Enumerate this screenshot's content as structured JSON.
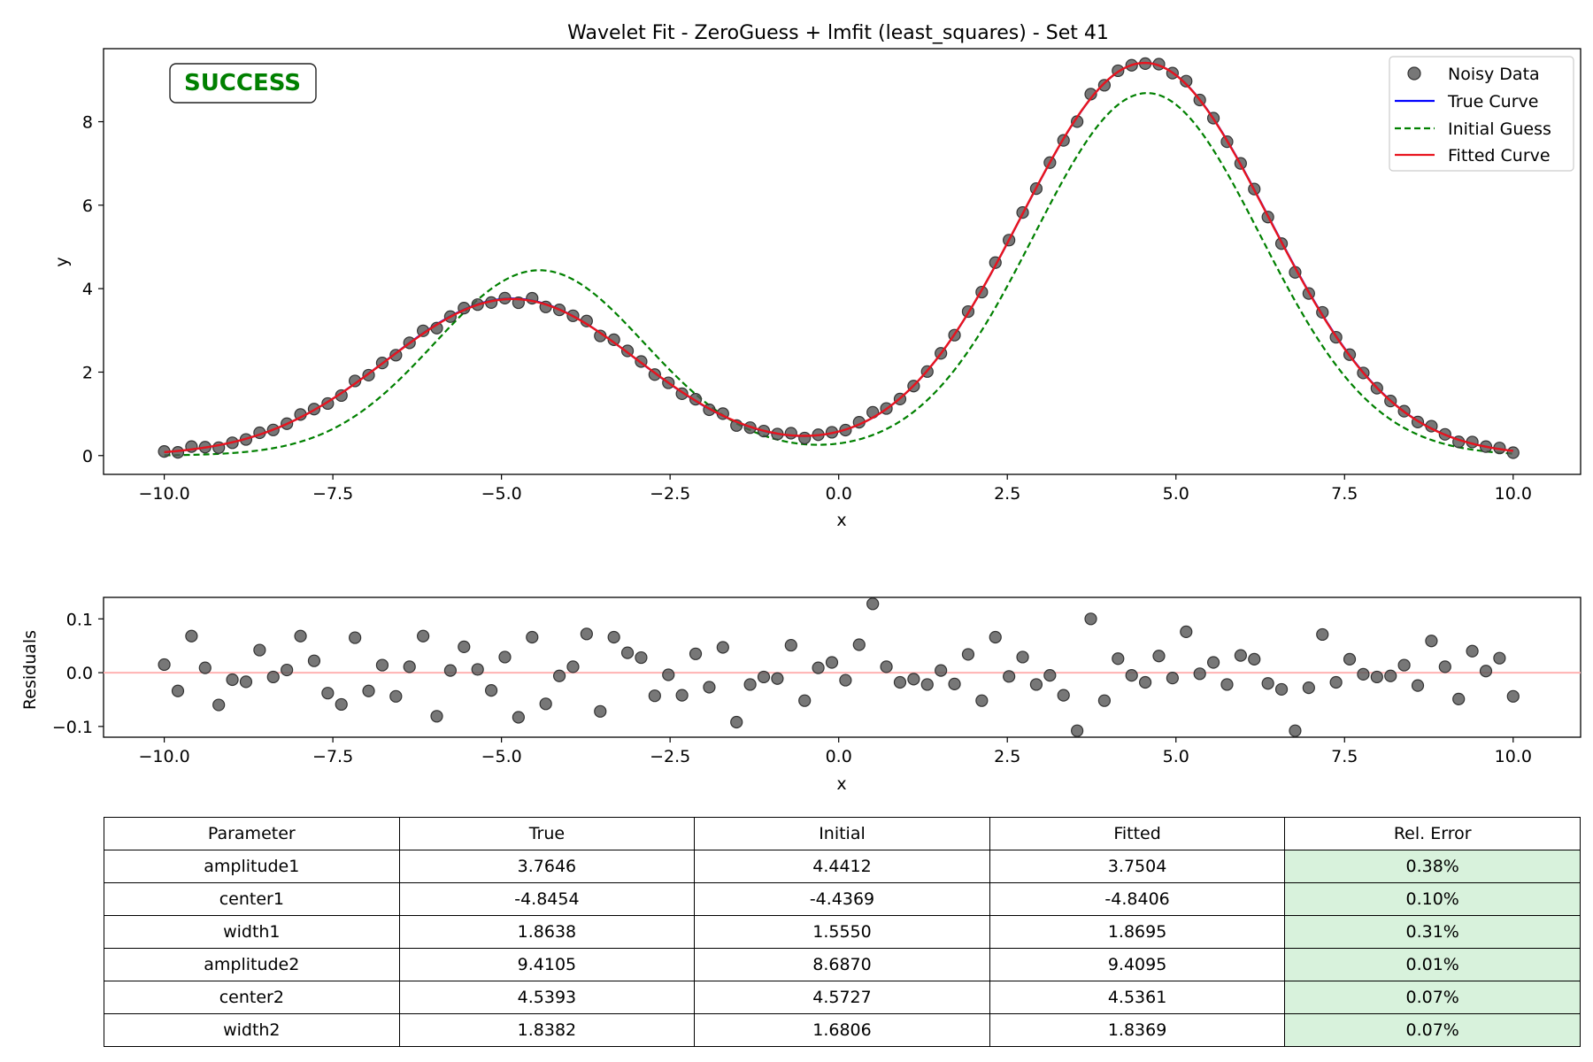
{
  "chart_data": [
    {
      "type": "line",
      "title": "Wavelet Fit - ZeroGuess + lmfit (least_squares) - Set 41",
      "xlabel": "x",
      "ylabel": "y",
      "xlim": [
        -10.9,
        11.0
      ],
      "ylim": [
        -0.45,
        9.75
      ],
      "xticks": [
        -10.0,
        -7.5,
        -5.0,
        -2.5,
        0.0,
        2.5,
        5.0,
        7.5,
        10.0
      ],
      "xtick_labels": [
        "−10.0",
        "−7.5",
        "−5.0",
        "−2.5",
        "0.0",
        "2.5",
        "5.0",
        "7.5",
        "10.0"
      ],
      "yticks": [
        0,
        2,
        4,
        6,
        8
      ],
      "ytick_labels": [
        "0",
        "2",
        "4",
        "6",
        "8"
      ],
      "grid": false,
      "legend_position": "top-right",
      "status_badge": "SUCCESS",
      "status_color": "#008000",
      "model": "sum of two gaussians: amplitude*exp(-(x-center)^2/(2*width^2))",
      "series": [
        {
          "name": "Noisy Data",
          "kind": "scatter",
          "color": "#555555",
          "x_range": [
            -10,
            10
          ],
          "n_points": 100,
          "offsets_source": "residuals"
        },
        {
          "name": "True Curve",
          "kind": "line",
          "color": "#0000ff",
          "params": {
            "amplitude1": 3.7646,
            "center1": -4.8454,
            "width1": 1.8638,
            "amplitude2": 9.4105,
            "center2": 4.5393,
            "width2": 1.8382
          }
        },
        {
          "name": "Initial Guess",
          "kind": "dashed-line",
          "color": "#008000",
          "params": {
            "amplitude1": 4.4412,
            "center1": -4.4369,
            "width1": 1.555,
            "amplitude2": 8.687,
            "center2": 4.5727,
            "width2": 1.6806
          }
        },
        {
          "name": "Fitted Curve",
          "kind": "line",
          "color": "#e8141e",
          "params": {
            "amplitude1": 3.7504,
            "center1": -4.8406,
            "width1": 1.8695,
            "amplitude2": 9.4095,
            "center2": 4.5361,
            "width2": 1.8369
          }
        }
      ]
    },
    {
      "type": "scatter",
      "title": "",
      "xlabel": "x",
      "ylabel": "Residuals",
      "xlim": [
        -10.9,
        11.0
      ],
      "ylim": [
        -0.12,
        0.14
      ],
      "xticks": [
        -10.0,
        -7.5,
        -5.0,
        -2.5,
        0.0,
        2.5,
        5.0,
        7.5,
        10.0
      ],
      "xtick_labels": [
        "−10.0",
        "−7.5",
        "−5.0",
        "−2.5",
        "0.0",
        "2.5",
        "5.0",
        "7.5",
        "10.0"
      ],
      "yticks": [
        0.1,
        0.0,
        -0.1
      ],
      "ytick_labels": [
        "0.1",
        "0.0",
        "−0.1"
      ],
      "zero_line_color": "#ffb3b3",
      "point_color": "#555555",
      "x_range": [
        -10,
        10
      ],
      "residuals": [
        0.015,
        -0.034,
        0.068,
        0.009,
        -0.06,
        -0.013,
        -0.017,
        0.042,
        -0.008,
        0.005,
        0.068,
        0.022,
        -0.038,
        -0.059,
        0.065,
        -0.034,
        0.014,
        -0.044,
        0.011,
        0.068,
        -0.081,
        0.004,
        0.048,
        0.006,
        -0.033,
        0.029,
        -0.083,
        0.066,
        -0.058,
        -0.006,
        0.011,
        0.072,
        -0.072,
        0.066,
        0.037,
        0.028,
        -0.043,
        -0.004,
        -0.042,
        0.035,
        -0.027,
        0.047,
        -0.092,
        -0.022,
        -0.008,
        -0.011,
        0.051,
        -0.052,
        0.009,
        0.019,
        -0.014,
        0.052,
        0.128,
        0.011,
        -0.018,
        -0.012,
        -0.022,
        0.004,
        -0.021,
        0.034,
        -0.052,
        0.066,
        -0.007,
        0.029,
        -0.022,
        -0.005,
        -0.042,
        -0.108,
        0.1,
        -0.052,
        0.026,
        -0.005,
        -0.018,
        0.031,
        -0.01,
        0.076,
        -0.002,
        0.019,
        -0.022,
        0.032,
        0.025,
        -0.02,
        -0.031,
        -0.108,
        -0.028,
        0.071,
        -0.018,
        0.025,
        -0.003,
        -0.008,
        -0.006,
        0.014,
        -0.024,
        0.059,
        0.011,
        -0.049,
        0.04,
        0.003,
        0.027,
        -0.044
      ]
    },
    {
      "type": "table",
      "columns": [
        "Parameter",
        "True",
        "Initial",
        "Fitted",
        "Rel. Error"
      ],
      "rows": [
        [
          "amplitude1",
          "3.7646",
          "4.4412",
          "3.7504",
          "0.38%"
        ],
        [
          "center1",
          "-4.8454",
          "-4.4369",
          "-4.8406",
          "0.10%"
        ],
        [
          "width1",
          "1.8638",
          "1.5550",
          "1.8695",
          "0.31%"
        ],
        [
          "amplitude2",
          "9.4105",
          "8.6870",
          "9.4095",
          "0.01%"
        ],
        [
          "center2",
          "4.5393",
          "4.5727",
          "4.5361",
          "0.07%"
        ],
        [
          "width2",
          "1.8382",
          "1.6806",
          "1.8369",
          "0.07%"
        ]
      ],
      "highlight_color": "#d8f2dc"
    }
  ]
}
